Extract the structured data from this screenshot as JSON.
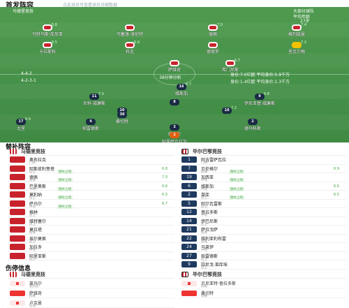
{
  "header": {
    "title": "首发阵容",
    "subtitle": "点此球员可查看球员详细数据"
  },
  "pitch": {
    "top_left_label": "马德里竞技",
    "top_right_label": "大部分球队",
    "top_right_label2": "平均年龄",
    "top_right_label3": "27岁",
    "center_label": "38分钟分析",
    "home_formation": "4-4-2",
    "away_formation": "4-2-3-1",
    "home_stats": "身价:7.0亿欧  平均身价:5.9千万",
    "away_stats": "身价:1.4亿欧  平均身价:1.3千万",
    "home_players": [
      {
        "n": "",
        "name": "马特乌斯·库尼亚",
        "rt": "6.8"
      },
      {
        "n": "",
        "name": "马塞洛-洛伦特",
        "rt": ""
      },
      {
        "n": "",
        "name": "德佩",
        "rt": "7.0"
      },
      {
        "n": "",
        "name": "格列兹曼",
        "rt": "7.4"
      },
      {
        "n": "",
        "name": "卡拉斯科",
        "rt": "6.5"
      },
      {
        "n": "",
        "name": "科克",
        "rt": "6.9"
      },
      {
        "n": "",
        "name": "德保罗",
        "rt": ""
      },
      {
        "n": "",
        "name": "里克尔梅",
        "rt": "7.2"
      },
      {
        "n": "",
        "name": "萨维奇",
        "rt": ""
      },
      {
        "n": "",
        "name": "希门尼斯",
        "rt": "6.7"
      }
    ],
    "away_players": [
      {
        "n": "11",
        "name": "尼科·威廉斯",
        "rt": "7.0"
      },
      {
        "n": "9",
        "name": "伊尼亚基·威廉斯",
        "rt": "6.8"
      },
      {
        "n": "8",
        "name": "",
        "rt": ""
      },
      {
        "n": "20",
        "name": "",
        "rt": ""
      },
      {
        "n": "10",
        "name": "",
        "rt": "7.2"
      },
      {
        "n": "16",
        "name": "维斯加",
        "rt": "6.7"
      },
      {
        "n": "30",
        "name": "桑切特",
        "rt": ""
      },
      {
        "n": "17",
        "name": "尤里",
        "rt": "6.9"
      },
      {
        "n": "4",
        "name": "帕雷德斯",
        "rt": ""
      },
      {
        "n": "3",
        "name": "维维安",
        "rt": ""
      },
      {
        "n": "2",
        "name": "德马科斯",
        "rt": ""
      },
      {
        "n": "1",
        "name": "阿里萨瓦拉加",
        "rt": ""
      }
    ]
  },
  "subs": {
    "title": "替补阵容",
    "home_team": "马德里竞技",
    "away_team": "毕尔巴鄂竞技",
    "home": [
      {
        "name": "奥布拉克",
        "pos": "门将",
        "sub": "",
        "rt": ""
      },
      {
        "name": "阿斯皮利奎塔",
        "pos": "后卫",
        "sub": "替补上场",
        "rt": "6.8"
      },
      {
        "name": "德佩",
        "pos": "前锋",
        "sub": "替补上场",
        "rt": "7.0"
      },
      {
        "name": "巴里奥斯",
        "pos": "中场",
        "sub": "替补上场",
        "rt": "6.6"
      },
      {
        "name": "莫利纳",
        "pos": "后卫",
        "sub": "替补上场",
        "rt": "6.5"
      },
      {
        "name": "萨乌尔",
        "pos": "中场",
        "sub": "替补上场",
        "rt": "6.7"
      },
      {
        "name": "格林",
        "pos": "后卫",
        "sub": "",
        "rt": ""
      },
      {
        "name": "维特塞尔",
        "pos": "后卫",
        "sub": "",
        "rt": ""
      },
      {
        "name": "莫拉塔",
        "pos": "前锋",
        "sub": "",
        "rt": ""
      },
      {
        "name": "埃尔莫索",
        "pos": "后卫",
        "sub": "",
        "rt": ""
      },
      {
        "name": "加拉多",
        "pos": "中场",
        "sub": "",
        "rt": ""
      },
      {
        "name": "阿里亚斯",
        "pos": "后卫",
        "sub": "",
        "rt": ""
      }
    ],
    "away": [
      {
        "n": "1",
        "name": "阿吉雷萨瓦拉",
        "pos": "门将",
        "sub": "",
        "rt": ""
      },
      {
        "n": "7",
        "name": "贝伦格尔",
        "pos": "前锋",
        "sub": "替补上场",
        "rt": "6.9"
      },
      {
        "n": "19",
        "name": "加西亚",
        "pos": "中场",
        "sub": "替补上场",
        "rt": ""
      },
      {
        "n": "6",
        "name": "维斯加",
        "pos": "中场",
        "sub": "替补上场",
        "rt": "6.6"
      },
      {
        "n": "2",
        "name": "莱库",
        "pos": "后卫",
        "sub": "替补上场",
        "rt": "6.5"
      },
      {
        "n": "5",
        "name": "阿尔瓦雷斯",
        "pos": "后卫",
        "sub": "",
        "rt": ""
      },
      {
        "n": "12",
        "name": "普拉多斯",
        "pos": "中场",
        "sub": "",
        "rt": ""
      },
      {
        "n": "14",
        "name": "伊巴尼斯",
        "pos": "后卫",
        "sub": "",
        "rt": ""
      },
      {
        "n": "21",
        "name": "萨拉戈萨",
        "pos": "前锋",
        "sub": "",
        "rt": ""
      },
      {
        "n": "22",
        "name": "维利亚利布雷",
        "pos": "前锋",
        "sub": "",
        "rt": ""
      },
      {
        "n": "24",
        "name": "马莱伊",
        "pos": "中场",
        "sub": "",
        "rt": ""
      },
      {
        "n": "27",
        "name": "帕雷德斯",
        "pos": "后卫",
        "sub": "",
        "rt": ""
      },
      {
        "n": "9",
        "name": "因尼戈·莱库埃",
        "pos": "后卫",
        "sub": "",
        "rt": ""
      }
    ]
  },
  "injuries": {
    "title": "伤停信息",
    "home": [
      {
        "name": "莱马尔",
        "note": "肌肉伤"
      },
      {
        "name": "萨维奇",
        "note": "停赛"
      },
      {
        "name": "卢克曼",
        "note": "伤病"
      }
    ],
    "away": [
      {
        "name": "贝尼亚特·普拉多斯",
        "note": "伤病"
      },
      {
        "name": "桑切特",
        "note": "停赛"
      }
    ]
  },
  "colors": {
    "home_red": "#c8232c",
    "away_navy": "#1f3a5f",
    "pitch_green": "#4a944b"
  }
}
